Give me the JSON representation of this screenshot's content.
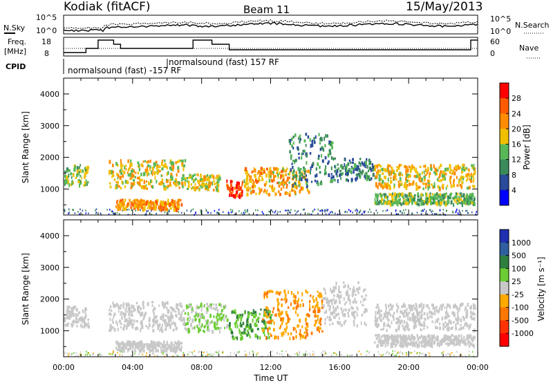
{
  "header": {
    "station": "Kodiak (fitACF)",
    "beam": "Beam 11",
    "date": "15/May/2013"
  },
  "top_panels": {
    "nsky_label": "N.Sky",
    "nsearch_label": "N.Search",
    "noise_ticks_left": [
      "10^5",
      "10^0"
    ],
    "noise_ticks_right": [
      "10^5",
      "10^0"
    ],
    "freq_label_line1": "Freq.",
    "freq_label_line2": "[MHz]",
    "freq_ticks": [
      "18",
      "8"
    ],
    "nave_label": "Nave",
    "nave_ticks": [
      "60",
      "0"
    ],
    "cpid_label": "CPID",
    "cpid_entries": [
      "normalsound (fast) -157 RF",
      "normalsound (fast) 157 RF"
    ]
  },
  "colors": {
    "power_scale": [
      "#0000ff",
      "#2a4a9a",
      "#3a8a5a",
      "#58b858",
      "#f0c000",
      "#ff8c00",
      "#ff5a00",
      "#ff0000"
    ],
    "velocity_scale": [
      "#1f2fb0",
      "#2f5f9f",
      "#2f7f3f",
      "#6ccc33",
      "#c8c8c8",
      "#ffaa00",
      "#ff7700",
      "#ff3300",
      "#ff0000"
    ],
    "ground_scatter": "#bebebe"
  },
  "chart_data": [
    {
      "type": "heatmap",
      "title": "",
      "xlabel": "Time UT",
      "ylabel": "Slant Range [km]",
      "x_ticks": [
        "00:00",
        "04:00",
        "08:00",
        "12:00",
        "16:00",
        "20:00",
        "00:00"
      ],
      "y_ticks": [
        "1000",
        "2000",
        "3000",
        "4000"
      ],
      "ylim": [
        180,
        4500
      ],
      "colorbar_label": "Power [dB]",
      "colorbar_ticks": [
        "28",
        "24",
        "20",
        "16",
        "12",
        "8",
        "4"
      ],
      "clim": [
        0,
        32
      ],
      "scatter_bands": [
        {
          "t0": 0.0,
          "t1": 1.4,
          "r0": 1150,
          "r1": 1800,
          "v": 14
        },
        {
          "t0": 2.6,
          "t1": 7.0,
          "r0": 1050,
          "r1": 1950,
          "v": 18
        },
        {
          "t0": 3.0,
          "t1": 6.8,
          "r0": 400,
          "r1": 700,
          "v": 22
        },
        {
          "t0": 7.0,
          "t1": 9.0,
          "r0": 1000,
          "r1": 1500,
          "v": 17
        },
        {
          "t0": 9.4,
          "t1": 10.4,
          "r0": 800,
          "r1": 1300,
          "v": 28
        },
        {
          "t0": 10.4,
          "t1": 14.2,
          "r0": 850,
          "r1": 1700,
          "v": 20
        },
        {
          "t0": 13.0,
          "t1": 15.6,
          "r0": 1100,
          "r1": 2800,
          "v": 10
        },
        {
          "t0": 15.6,
          "t1": 18.0,
          "r0": 1300,
          "r1": 2000,
          "v": 9
        },
        {
          "t0": 18.0,
          "t1": 23.8,
          "r0": 1050,
          "r1": 1800,
          "v": 19
        },
        {
          "t0": 18.0,
          "t1": 23.8,
          "r0": 550,
          "r1": 900,
          "v": 14
        }
      ]
    },
    {
      "type": "heatmap",
      "title": "",
      "xlabel": "Time UT",
      "ylabel": "Slant Range [km]",
      "x_ticks": [
        "00:00",
        "04:00",
        "08:00",
        "12:00",
        "16:00",
        "20:00",
        "00:00"
      ],
      "y_ticks": [
        "1000",
        "2000",
        "3000",
        "4000"
      ],
      "ylim": [
        180,
        4500
      ],
      "colorbar_label": "Velocity [m s⁻¹]",
      "colorbar_ticks": [
        "1000",
        "500",
        "100",
        "25",
        "-25",
        "-100",
        "-500",
        "-1000"
      ],
      "clim": [
        -1000,
        1000
      ],
      "scatter_bands": [
        {
          "t0": 0.0,
          "t1": 1.4,
          "r0": 1150,
          "r1": 1800,
          "v": 0
        },
        {
          "t0": 2.6,
          "t1": 7.0,
          "r0": 1050,
          "r1": 1950,
          "v": 0
        },
        {
          "t0": 3.0,
          "t1": 6.8,
          "r0": 400,
          "r1": 700,
          "v": 0
        },
        {
          "t0": 7.0,
          "t1": 9.5,
          "r0": 1000,
          "r1": 1900,
          "v": 150
        },
        {
          "t0": 9.5,
          "t1": 12.0,
          "r0": 800,
          "r1": 1700,
          "v": 300
        },
        {
          "t0": 11.5,
          "t1": 15.0,
          "r0": 800,
          "r1": 2300,
          "v": -300
        },
        {
          "t0": 15.0,
          "t1": 17.5,
          "r0": 1200,
          "r1": 2600,
          "v": 0
        },
        {
          "t0": 18.0,
          "t1": 23.8,
          "r0": 1050,
          "r1": 1900,
          "v": 0
        },
        {
          "t0": 18.0,
          "t1": 23.8,
          "r0": 550,
          "r1": 900,
          "v": 0
        }
      ]
    }
  ]
}
